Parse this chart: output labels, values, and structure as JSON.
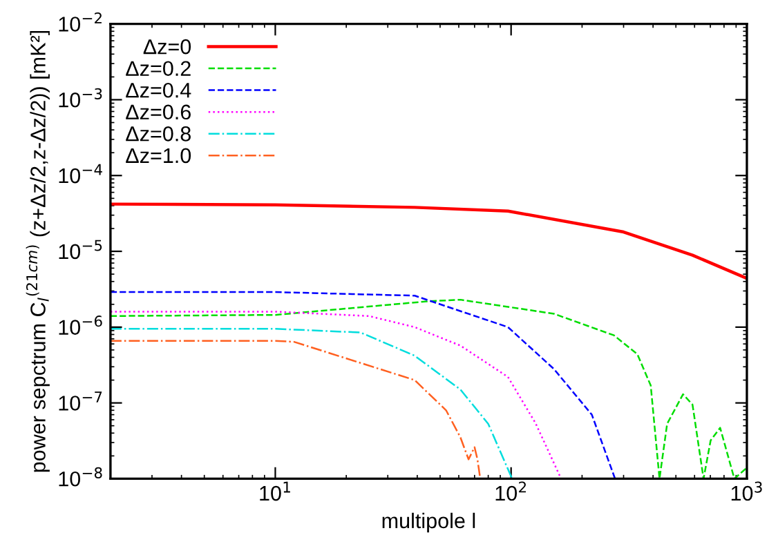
{
  "chart_data": {
    "type": "line",
    "xlabel": "multipole l",
    "ylabel": "power sepctrum C$_{l}$$^{(21cm)}$ (z+Δz/2,z-Δz/2)) [mK²]",
    "log": "xy",
    "xlim": [
      2,
      1000
    ],
    "ylim": [
      1e-08,
      0.01
    ],
    "xticks": [
      {
        "value": 10,
        "label": "10$^{1}$"
      },
      {
        "value": 100,
        "label": "10$^{2}$"
      },
      {
        "value": 1000,
        "label": "10$^{3}$"
      }
    ],
    "yticks": [
      {
        "value": 1e-08,
        "label": "10$^{−8}$"
      },
      {
        "value": 1e-07,
        "label": "10$^{−7}$"
      },
      {
        "value": 1e-06,
        "label": "10$^{−6}$"
      },
      {
        "value": 1e-05,
        "label": "10$^{−5}$"
      },
      {
        "value": 0.0001,
        "label": "10$^{−4}$"
      },
      {
        "value": 0.001,
        "label": "10$^{−3}$"
      },
      {
        "value": 0.01,
        "label": "10$^{−2}$"
      }
    ],
    "legend": "top left",
    "grid": false,
    "series": [
      {
        "name": "Δz=0",
        "color": "#ff0000",
        "line_style": "solid",
        "x": [
          2,
          10,
          39,
          97,
          300,
          588,
          1000
        ],
        "values": [
          4.2e-05,
          4.1e-05,
          3.8e-05,
          3.4e-05,
          1.8e-05,
          8.9e-06,
          4.4e-06
        ]
      },
      {
        "name": "Δz=0.2",
        "color": "#00dd00",
        "line_style": "dashed",
        "x": [
          2,
          10,
          45,
          61,
          152,
          273,
          343,
          391,
          426,
          459,
          536,
          588,
          655,
          702,
          770,
          885,
          1000
        ],
        "values": [
          1.4e-06,
          1.45e-06,
          2.2e-06,
          2.3e-06,
          1.5e-06,
          7.8e-07,
          4.4e-07,
          1.7e-07,
          1e-08,
          5.3e-08,
          1.3e-07,
          9.5e-08,
          1e-08,
          3.2e-08,
          4.7e-08,
          1e-08,
          1.4e-08
        ]
      },
      {
        "name": "Δz=0.4",
        "color": "#0000ff",
        "line_style": "dashed",
        "x": [
          2,
          10,
          39,
          97,
          152,
          220,
          276
        ],
        "values": [
          2.9e-06,
          2.9e-06,
          2.6e-06,
          1e-06,
          2.8e-07,
          7e-08,
          1e-08
        ]
      },
      {
        "name": "Δz=0.6",
        "color": "#ff00ff",
        "line_style": "dotted",
        "x": [
          2,
          10,
          25,
          39,
          61,
          97,
          127,
          163
        ],
        "values": [
          1.6e-06,
          1.6e-06,
          1.4e-06,
          1e-06,
          5.7e-07,
          2.2e-07,
          5.4e-08,
          1e-08
        ]
      },
      {
        "name": "Δz=0.8",
        "color": "#00dddd",
        "line_style": "dashdot",
        "x": [
          2,
          10,
          23,
          39,
          61,
          80,
          101
        ],
        "values": [
          9.5e-07,
          9.5e-07,
          8.5e-07,
          4.2e-07,
          1.5e-07,
          5.3e-08,
          1e-08
        ]
      },
      {
        "name": "Δz=1.0",
        "color": "#ff6020",
        "line_style": "dashdot",
        "x": [
          2,
          10,
          12,
          39,
          53,
          61,
          66,
          70,
          72,
          74
        ],
        "values": [
          6.6e-07,
          6.6e-07,
          6.4e-07,
          2e-07,
          8e-08,
          3.5e-08,
          1.8e-08,
          2.6e-08,
          1.8e-08,
          1e-08
        ]
      }
    ]
  }
}
